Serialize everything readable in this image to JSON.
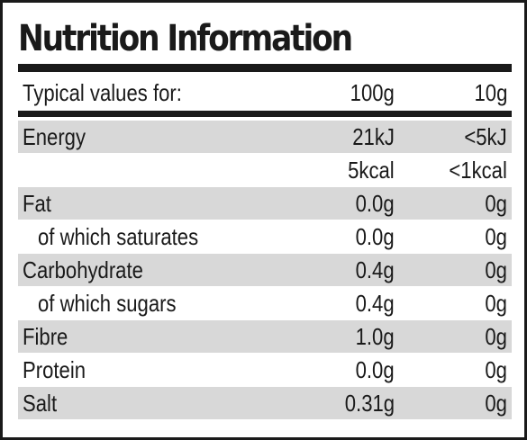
{
  "title": "Nutrition Information",
  "header": {
    "label": "Typical values for:",
    "col1": "100g",
    "col2": "10g"
  },
  "rows": [
    {
      "name": "Energy",
      "v100": "21kJ",
      "v10": "<5kJ",
      "shaded": true,
      "sub": false
    },
    {
      "name": "",
      "v100": "5kcal",
      "v10": "<1kcal",
      "shaded": false,
      "sub": false
    },
    {
      "name": "Fat",
      "v100": "0.0g",
      "v10": "0g",
      "shaded": true,
      "sub": false
    },
    {
      "name": "of which saturates",
      "v100": "0.0g",
      "v10": "0g",
      "shaded": false,
      "sub": true
    },
    {
      "name": "Carbohydrate",
      "v100": "0.4g",
      "v10": "0g",
      "shaded": true,
      "sub": false
    },
    {
      "name": "of which sugars",
      "v100": "0.4g",
      "v10": "0g",
      "shaded": false,
      "sub": true
    },
    {
      "name": "Fibre",
      "v100": "1.0g",
      "v10": "0g",
      "shaded": true,
      "sub": false
    },
    {
      "name": "Protein",
      "v100": "0.0g",
      "v10": "0g",
      "shaded": false,
      "sub": false
    },
    {
      "name": "Salt",
      "v100": "0.31g",
      "v10": "0g",
      "shaded": true,
      "sub": false
    }
  ]
}
